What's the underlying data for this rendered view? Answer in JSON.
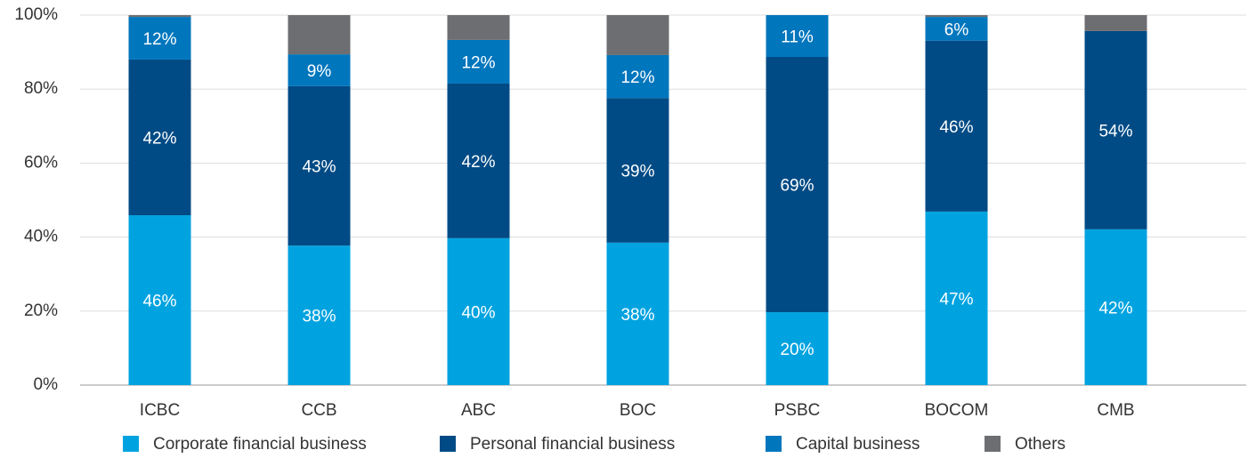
{
  "chart_data": {
    "type": "stacked_bar",
    "categories": [
      "ICBC",
      "CCB",
      "ABC",
      "BOC",
      "PSBC",
      "BOCOM",
      "CMB"
    ],
    "series": [
      {
        "name": "Corporate financial business",
        "color": "#00a3e0",
        "values": [
          45.9,
          37.7,
          39.7,
          38.5,
          19.7,
          46.9,
          42.1
        ],
        "value_labels": [
          "46%",
          "38%",
          "40%",
          "38%",
          "20%",
          "47%",
          "42%"
        ]
      },
      {
        "name": "Personal financial business",
        "color": "#004b85",
        "values": [
          42.1,
          43.1,
          41.8,
          39.1,
          69.0,
          46.2,
          53.6
        ],
        "value_labels": [
          "42%",
          "43%",
          "42%",
          "39%",
          "69%",
          "46%",
          "54%"
        ]
      },
      {
        "name": "Capital business",
        "color": "#0076bd",
        "values": [
          11.5,
          8.6,
          11.8,
          11.6,
          11.3,
          6.4,
          null
        ],
        "value_labels": [
          "12%",
          "9%",
          "12%",
          "12%",
          "11%",
          "6%",
          null
        ]
      },
      {
        "name": "Others",
        "color": "#6d6e71",
        "values": [
          0.5,
          10.6,
          6.7,
          10.8,
          0,
          0.5,
          4.3
        ]
      }
    ],
    "ylim": [
      0,
      100
    ],
    "yticks": [
      {
        "value": 0,
        "label": "0%"
      },
      {
        "value": 20,
        "label": "20%"
      },
      {
        "value": 40,
        "label": "40%"
      },
      {
        "value": 60,
        "label": "60%"
      },
      {
        "value": 80,
        "label": "80%"
      },
      {
        "value": 100,
        "label": "100%"
      }
    ],
    "grid": true,
    "legend": "bottom"
  }
}
